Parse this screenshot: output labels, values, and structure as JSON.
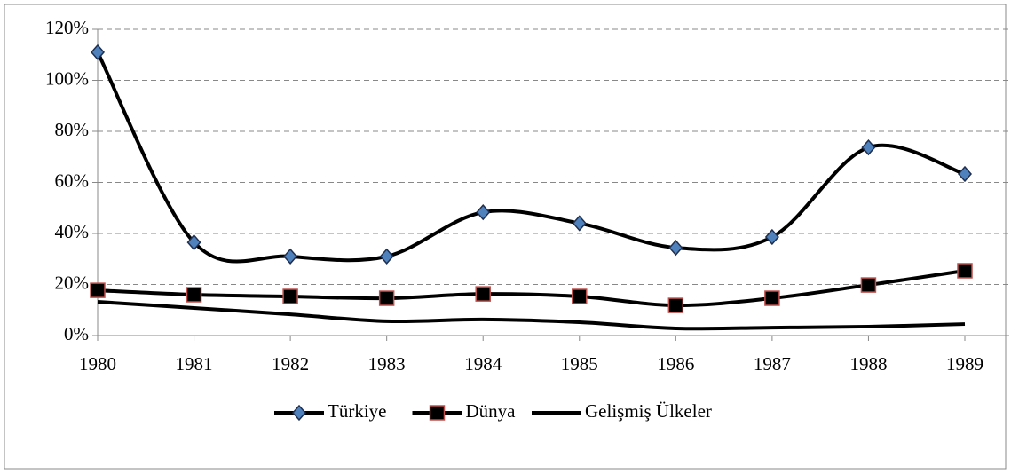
{
  "chart_data": {
    "type": "line",
    "categories": [
      "1980",
      "1981",
      "1982",
      "1983",
      "1984",
      "1985",
      "1986",
      "1987",
      "1988",
      "1989"
    ],
    "series": [
      {
        "name": "Türkiye",
        "color": "#000000",
        "marker": "diamond",
        "marker_fill": "#4f81bd",
        "values": [
          111,
          36.5,
          31,
          31,
          48.3,
          44,
          34.4,
          38.6,
          73.7,
          63.3
        ]
      },
      {
        "name": "Dünya",
        "color": "#000000",
        "marker": "square",
        "marker_fill": "#000000",
        "marker_stroke": "#c0504d",
        "values": [
          17.7,
          16,
          15.3,
          14.6,
          16.3,
          15.3,
          11.8,
          14.6,
          19.8,
          25.4
        ]
      },
      {
        "name": "Gelişmiş Ülkeler",
        "color": "#000000",
        "marker": "none",
        "values": [
          13.2,
          10.8,
          8.3,
          5.6,
          6.3,
          5.2,
          2.8,
          3.1,
          3.5,
          4.5
        ]
      }
    ],
    "ylim": [
      0,
      120
    ],
    "yticks": [
      {
        "value": 0,
        "label": "0%"
      },
      {
        "value": 20,
        "label": "20%"
      },
      {
        "value": 40,
        "label": "40%"
      },
      {
        "value": 60,
        "label": "60%"
      },
      {
        "value": 80,
        "label": "80%"
      },
      {
        "value": 100,
        "label": "100%"
      },
      {
        "value": 120,
        "label": "120%"
      }
    ],
    "grid": true,
    "smooth": true,
    "legend": "bottom"
  }
}
